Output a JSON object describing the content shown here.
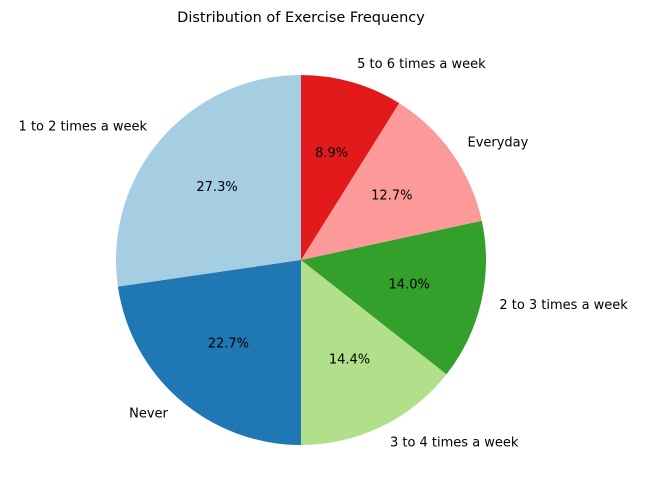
{
  "chart_data": {
    "type": "pie",
    "title": "Distribution of Exercise Frequency",
    "start_angle_deg": 90,
    "direction": "counterclockwise",
    "slices": [
      {
        "label": "1 to 2 times a week",
        "value": 27.3,
        "pct_label": "27.3%",
        "color": "#a6cee3"
      },
      {
        "label": "Never",
        "value": 22.7,
        "pct_label": "22.7%",
        "color": "#1f78b4"
      },
      {
        "label": "3 to 4 times a week",
        "value": 14.4,
        "pct_label": "14.4%",
        "color": "#b2df8a"
      },
      {
        "label": "2 to 3 times a week",
        "value": 14.0,
        "pct_label": "14.0%",
        "color": "#33a02c"
      },
      {
        "label": "Everyday",
        "value": 12.7,
        "pct_label": "12.7%",
        "color": "#fb9a99"
      },
      {
        "label": "5 to 6 times a week",
        "value": 8.9,
        "pct_label": "8.9%",
        "color": "#e31a1c"
      }
    ]
  }
}
